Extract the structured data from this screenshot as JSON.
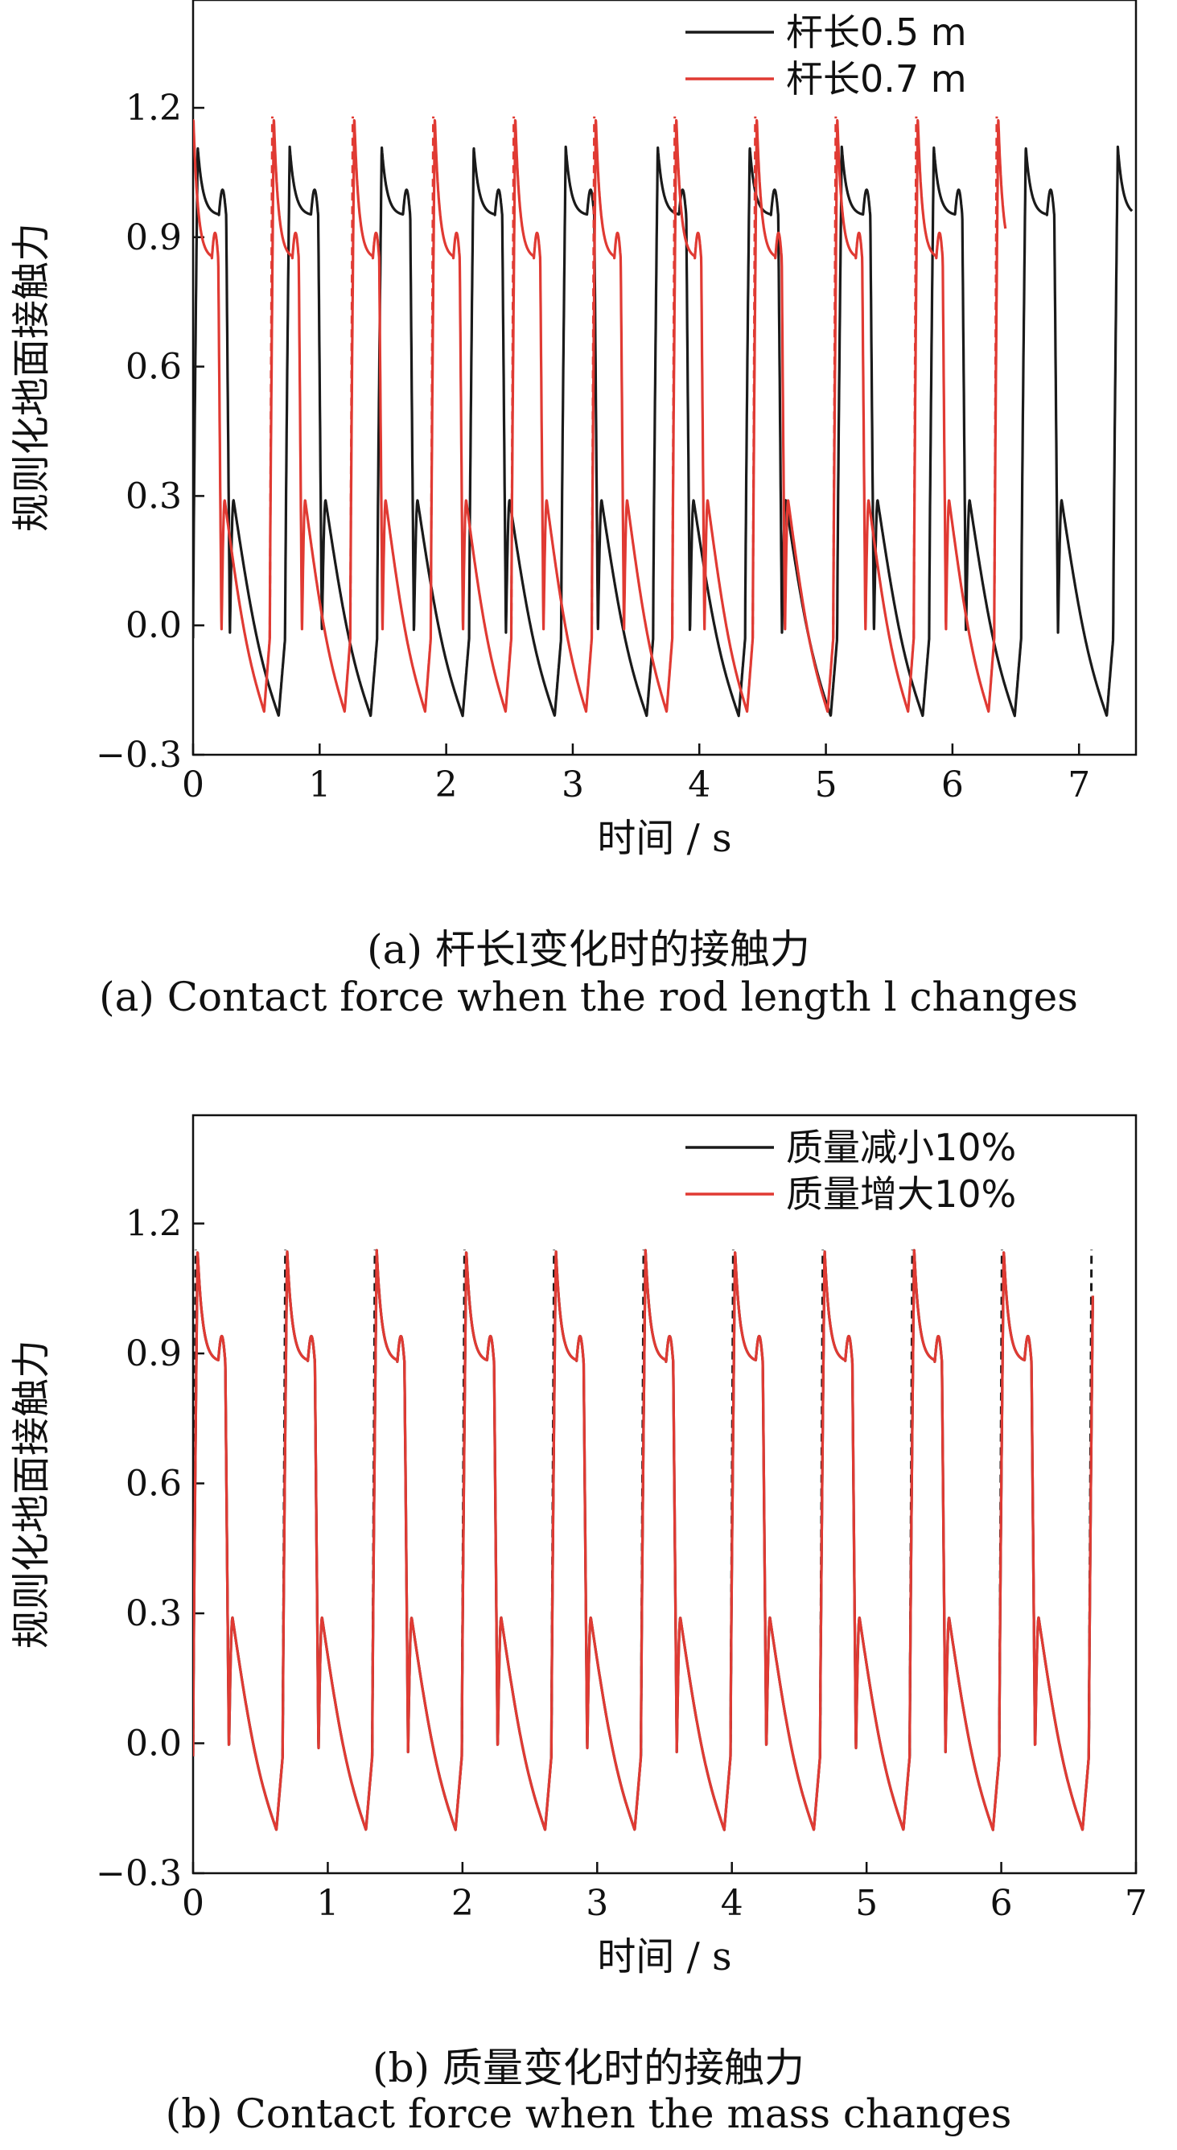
{
  "chart_data": [
    {
      "type": "line",
      "panel": "a",
      "ylabel": "规则化地面接触力",
      "xlabel": "时间 / s",
      "xlim": [
        0,
        7.45
      ],
      "ylim": [
        -0.3,
        1.45
      ],
      "xticks": [
        0,
        1,
        2,
        3,
        4,
        5,
        6,
        7
      ],
      "yticks": [
        -0.3,
        0.0,
        0.3,
        0.6,
        0.9,
        1.2
      ],
      "ytick_labels": [
        "−0.3",
        "0.0",
        "0.3",
        "0.6",
        "0.9",
        "1.2"
      ],
      "legend_position": "top-right",
      "caption_cn": "(a) 杆长l变化时的接触力",
      "caption_en": "(a) Contact force when the rod length l changes",
      "series": [
        {
          "name": "杆长0.5 m",
          "color": "#1a1a1a",
          "period": 0.727,
          "phase": 0.0,
          "end": 7.42,
          "peak_main": 1.11,
          "plateau": 0.95,
          "peak_minor": 0.29,
          "trough": -0.21,
          "dashed_jump": false
        },
        {
          "name": "杆长0.7 m",
          "color": "#e03a33",
          "period": 0.636,
          "phase": -0.03,
          "end": 6.42,
          "peak_main": 1.18,
          "plateau": 0.85,
          "peak_minor": 0.29,
          "trough": -0.2,
          "dashed_jump": true
        }
      ]
    },
    {
      "type": "line",
      "panel": "b",
      "ylabel": "规则化地面接触力",
      "xlabel": "时间 / s",
      "xlim": [
        0,
        7.0
      ],
      "ylim": [
        -0.3,
        1.45
      ],
      "xticks": [
        0,
        1,
        2,
        3,
        4,
        5,
        6,
        7
      ],
      "yticks": [
        -0.3,
        0.0,
        0.3,
        0.6,
        0.9,
        1.2
      ],
      "ytick_labels": [
        "−0.3",
        "0.0",
        "0.3",
        "0.6",
        "0.9",
        "1.2"
      ],
      "legend_position": "top-right",
      "caption_cn": "(b) 质量变化时的接触力",
      "caption_en": "(b) Contact force when the mass changes",
      "series": [
        {
          "name": "质量减小10%",
          "color": "#1a1a1a",
          "period": 0.665,
          "phase": 0.0,
          "end": 6.68,
          "peak_main": 1.14,
          "plateau": 0.88,
          "peak_minor": 0.29,
          "trough": -0.2,
          "dashed_jump": true
        },
        {
          "name": "质量增大10%",
          "color": "#e03a33",
          "period": 0.665,
          "phase": 0.0,
          "end": 6.68,
          "peak_main": 1.14,
          "plateau": 0.88,
          "peak_minor": 0.29,
          "trough": -0.2,
          "dashed_jump": false
        }
      ]
    }
  ]
}
